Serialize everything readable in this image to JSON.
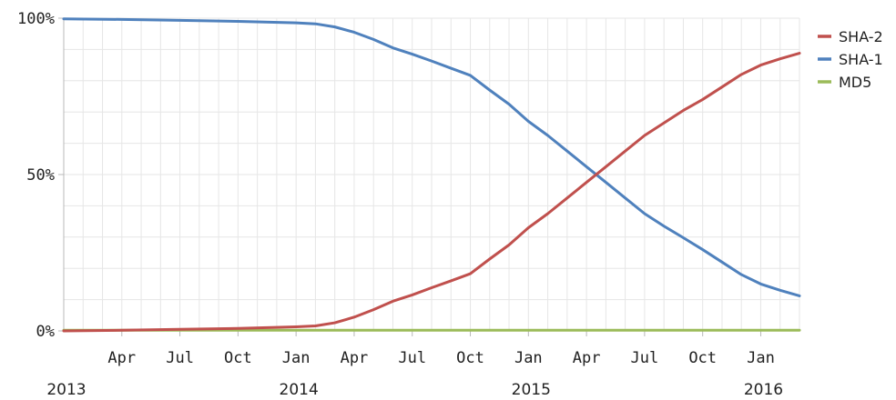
{
  "chart_data": {
    "type": "line",
    "title": "",
    "xlabel": "",
    "ylabel": "",
    "ylim": [
      0,
      100
    ],
    "y_ticks": [
      "0%",
      "50%",
      "100%"
    ],
    "x_range": [
      "2013-01",
      "2016-03"
    ],
    "x_ticks": [
      {
        "month": "2013-04",
        "label": "Apr"
      },
      {
        "month": "2013-07",
        "label": "Jul"
      },
      {
        "month": "2013-10",
        "label": "Oct"
      },
      {
        "month": "2014-01",
        "label": "Jan"
      },
      {
        "month": "2014-04",
        "label": "Apr"
      },
      {
        "month": "2014-07",
        "label": "Jul"
      },
      {
        "month": "2014-10",
        "label": "Oct"
      },
      {
        "month": "2015-01",
        "label": "Jan"
      },
      {
        "month": "2015-04",
        "label": "Apr"
      },
      {
        "month": "2015-07",
        "label": "Jul"
      },
      {
        "month": "2015-10",
        "label": "Oct"
      },
      {
        "month": "2016-01",
        "label": "Jan"
      }
    ],
    "year_labels": [
      {
        "month": "2013-01",
        "label": "2013"
      },
      {
        "month": "2014-01",
        "label": "2014"
      },
      {
        "month": "2015-01",
        "label": "2015"
      },
      {
        "month": "2016-01",
        "label": "2016"
      }
    ],
    "grid": true,
    "legend_position": "right",
    "series": [
      {
        "name": "SHA-2",
        "color": "#c0504d",
        "points": [
          [
            "2013-01",
            0
          ],
          [
            "2013-04",
            0.2
          ],
          [
            "2013-07",
            0.5
          ],
          [
            "2013-10",
            0.8
          ],
          [
            "2014-01",
            1.3
          ],
          [
            "2014-02",
            1.6
          ],
          [
            "2014-03",
            2.6
          ],
          [
            "2014-04",
            4.4
          ],
          [
            "2014-05",
            6.8
          ],
          [
            "2014-06",
            9.5
          ],
          [
            "2014-07",
            11.5
          ],
          [
            "2014-08",
            13.8
          ],
          [
            "2014-09",
            16
          ],
          [
            "2014-10",
            18.3
          ],
          [
            "2014-11",
            23
          ],
          [
            "2014-12",
            27.5
          ],
          [
            "2015-01",
            33
          ],
          [
            "2015-02",
            37.5
          ],
          [
            "2015-03",
            42.5
          ],
          [
            "2015-04",
            47.5
          ],
          [
            "2015-05",
            52.5
          ],
          [
            "2015-06",
            57.5
          ],
          [
            "2015-07",
            62.5
          ],
          [
            "2015-08",
            66.5
          ],
          [
            "2015-09",
            70.5
          ],
          [
            "2015-10",
            74
          ],
          [
            "2015-11",
            78
          ],
          [
            "2015-12",
            82
          ],
          [
            "2016-01",
            85
          ],
          [
            "2016-02",
            87
          ],
          [
            "2016-03",
            88.8
          ]
        ]
      },
      {
        "name": "SHA-1",
        "color": "#4f81bd",
        "points": [
          [
            "2013-01",
            99.8
          ],
          [
            "2013-04",
            99.6
          ],
          [
            "2013-07",
            99.3
          ],
          [
            "2013-10",
            99
          ],
          [
            "2014-01",
            98.5
          ],
          [
            "2014-02",
            98.2
          ],
          [
            "2014-03",
            97.2
          ],
          [
            "2014-04",
            95.5
          ],
          [
            "2014-05",
            93.2
          ],
          [
            "2014-06",
            90.5
          ],
          [
            "2014-07",
            88.5
          ],
          [
            "2014-08",
            86.3
          ],
          [
            "2014-09",
            84
          ],
          [
            "2014-10",
            81.7
          ],
          [
            "2014-11",
            77
          ],
          [
            "2014-12",
            72.5
          ],
          [
            "2015-01",
            67
          ],
          [
            "2015-02",
            62.5
          ],
          [
            "2015-03",
            57.5
          ],
          [
            "2015-04",
            52.5
          ],
          [
            "2015-05",
            47.5
          ],
          [
            "2015-06",
            42.5
          ],
          [
            "2015-07",
            37.5
          ],
          [
            "2015-08",
            33.5
          ],
          [
            "2015-09",
            29.8
          ],
          [
            "2015-10",
            26
          ],
          [
            "2015-11",
            22
          ],
          [
            "2015-12",
            18
          ],
          [
            "2016-01",
            15
          ],
          [
            "2016-02",
            13
          ],
          [
            "2016-03",
            11.2
          ]
        ]
      },
      {
        "name": "MD5",
        "color": "#9bbb59",
        "points": [
          [
            "2013-01",
            0.2
          ],
          [
            "2014-01",
            0.2
          ],
          [
            "2015-01",
            0.2
          ],
          [
            "2016-01",
            0.2
          ],
          [
            "2016-03",
            0.2
          ]
        ]
      }
    ]
  }
}
